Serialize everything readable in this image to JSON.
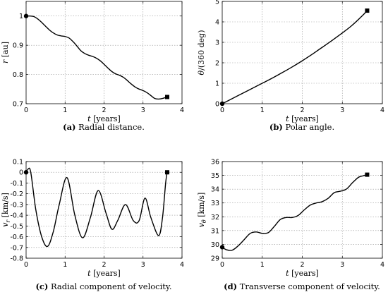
{
  "chart_data": [
    {
      "type": "line",
      "panel": "a",
      "caption_letter": "(a)",
      "caption_text": " Radial distance.",
      "xlabel_var": "t",
      "xlabel_unit": "[years]",
      "ylabel_var": "r",
      "ylabel_unit": "[au]",
      "xlim": [
        0,
        4
      ],
      "ylim": [
        0.7,
        1.05
      ],
      "xticks": [
        0,
        1,
        2,
        3,
        4
      ],
      "yticks": [
        0.7,
        0.8,
        0.9,
        1
      ],
      "ytick_labels": [
        "0.7",
        "0.8",
        "0.9",
        "1"
      ],
      "grid": true,
      "series": [
        {
          "x": [
            0,
            0.1,
            0.2,
            0.3,
            0.4,
            0.5,
            0.6,
            0.7,
            0.8,
            0.9,
            1.0,
            1.1,
            1.2,
            1.3,
            1.4,
            1.5,
            1.6,
            1.7,
            1.8,
            1.9,
            2.0,
            2.1,
            2.2,
            2.3,
            2.4,
            2.5,
            2.6,
            2.7,
            2.8,
            2.9,
            3.0,
            3.1,
            3.2,
            3.3,
            3.4,
            3.5,
            3.62
          ],
          "y": [
            1.0,
            1.0,
            0.998,
            0.99,
            0.978,
            0.965,
            0.952,
            0.942,
            0.935,
            0.932,
            0.93,
            0.925,
            0.913,
            0.898,
            0.882,
            0.872,
            0.866,
            0.862,
            0.856,
            0.847,
            0.835,
            0.822,
            0.81,
            0.802,
            0.797,
            0.79,
            0.779,
            0.767,
            0.757,
            0.75,
            0.745,
            0.738,
            0.728,
            0.718,
            0.716,
            0.718,
            0.723
          ]
        }
      ],
      "start_marker": "circle",
      "end_marker": "square"
    },
    {
      "type": "line",
      "panel": "b",
      "caption_letter": "(b)",
      "caption_text": " Polar angle.",
      "xlabel_var": "t",
      "xlabel_unit": "[years]",
      "ylabel_var": "θ",
      "ylabel_unit": "/(360 deg)",
      "xlim": [
        0,
        4
      ],
      "ylim": [
        0,
        5
      ],
      "xticks": [
        0,
        1,
        2,
        3,
        4
      ],
      "yticks": [
        0,
        1,
        2,
        3,
        4,
        5
      ],
      "ytick_labels": [
        "0",
        "1",
        "2",
        "3",
        "4",
        "5"
      ],
      "grid": true,
      "series": [
        {
          "x": [
            0,
            0.25,
            0.5,
            0.75,
            1.0,
            1.25,
            1.5,
            1.75,
            2.0,
            2.25,
            2.5,
            2.75,
            3.0,
            3.25,
            3.5,
            3.62
          ],
          "y": [
            0,
            0.25,
            0.5,
            0.75,
            1.0,
            1.25,
            1.52,
            1.8,
            2.1,
            2.42,
            2.76,
            3.1,
            3.46,
            3.84,
            4.3,
            4.55
          ]
        }
      ],
      "start_marker": "circle",
      "end_marker": "square"
    },
    {
      "type": "line",
      "panel": "c",
      "caption_letter": "(c)",
      "caption_text": " Radial component of velocity.",
      "xlabel_var": "t",
      "xlabel_unit": "[years]",
      "ylabel_var": "v",
      "ylabel_sub": "r",
      "ylabel_unit": "[km/s]",
      "xlim": [
        0,
        4
      ],
      "ylim": [
        -0.8,
        0.1
      ],
      "xticks": [
        0,
        1,
        2,
        3,
        4
      ],
      "yticks": [
        0.1,
        0,
        -0.1,
        -0.2,
        -0.3,
        -0.4,
        -0.5,
        -0.6,
        -0.7,
        -0.8
      ],
      "ytick_labels": [
        "0.1",
        "0",
        "-0.1",
        "-0.2",
        "-0.3",
        "-0.4",
        "-0.5",
        "-0.6",
        "-0.7",
        "-0.8"
      ],
      "grid": true,
      "series": [
        {
          "x": [
            0,
            0.05,
            0.12,
            0.25,
            0.4,
            0.55,
            0.7,
            0.85,
            1.05,
            1.25,
            1.45,
            1.65,
            1.85,
            2.05,
            2.2,
            2.35,
            2.55,
            2.75,
            2.9,
            3.05,
            3.2,
            3.4,
            3.5,
            3.58,
            3.62
          ],
          "y": [
            0,
            0.03,
            0.0,
            -0.35,
            -0.6,
            -0.69,
            -0.55,
            -0.3,
            -0.05,
            -0.4,
            -0.61,
            -0.42,
            -0.17,
            -0.38,
            -0.53,
            -0.45,
            -0.3,
            -0.45,
            -0.45,
            -0.24,
            -0.42,
            -0.59,
            -0.42,
            -0.1,
            0.0
          ]
        }
      ],
      "start_marker": "circle",
      "end_marker": "square"
    },
    {
      "type": "line",
      "panel": "d",
      "caption_letter": "(d)",
      "caption_text": " Transverse component of velocity.",
      "xlabel_var": "t",
      "xlabel_unit": "[years]",
      "ylabel_var": "v",
      "ylabel_sub": "θ",
      "ylabel_unit": "[km/s]",
      "xlim": [
        0,
        4
      ],
      "ylim": [
        29,
        36
      ],
      "xticks": [
        0,
        1,
        2,
        3,
        4
      ],
      "yticks": [
        29,
        30,
        31,
        32,
        33,
        34,
        35,
        36
      ],
      "ytick_labels": [
        "29",
        "30",
        "31",
        "32",
        "33",
        "34",
        "35",
        "36"
      ],
      "grid": true,
      "series": [
        {
          "x": [
            0,
            0.1,
            0.25,
            0.4,
            0.55,
            0.7,
            0.85,
            1.0,
            1.15,
            1.3,
            1.45,
            1.6,
            1.75,
            1.9,
            2.05,
            2.2,
            2.35,
            2.5,
            2.65,
            2.8,
            2.95,
            3.1,
            3.25,
            3.4,
            3.5,
            3.62
          ],
          "y": [
            29.8,
            29.62,
            29.58,
            29.9,
            30.35,
            30.8,
            30.9,
            30.8,
            30.85,
            31.3,
            31.8,
            31.95,
            31.95,
            32.1,
            32.5,
            32.85,
            33.0,
            33.1,
            33.35,
            33.75,
            33.85,
            34.0,
            34.45,
            34.85,
            34.95,
            35.05
          ]
        }
      ],
      "start_marker": "circle",
      "end_marker": "square"
    }
  ]
}
